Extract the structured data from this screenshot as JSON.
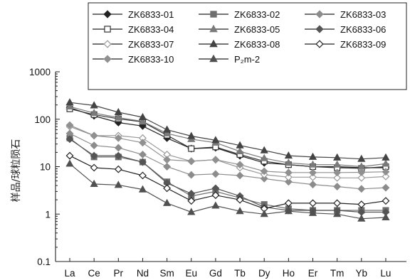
{
  "chart_data": {
    "type": "line",
    "title": "",
    "xlabel": "",
    "ylabel": "样品/球粒陨石",
    "y_scale": "log",
    "ylim": [
      0.1,
      1000
    ],
    "y_ticks": [
      "0.1",
      "1",
      "10",
      "100",
      "1000"
    ],
    "grid": false,
    "legend_position": "top",
    "categories": [
      "La",
      "Ce",
      "Pr",
      "Nd",
      "Sm",
      "Eu",
      "Gd",
      "Tb",
      "Dy",
      "Ho",
      "Er",
      "Tm",
      "Yb",
      "Lu"
    ],
    "series": [
      {
        "name": "ZK6833-01",
        "marker": "diamond-filled",
        "color": "#222222",
        "values": [
          175,
          118,
          85,
          72,
          40,
          24,
          25,
          17,
          12,
          11,
          10,
          10,
          9.5,
          9.5
        ]
      },
      {
        "name": "ZK6833-02",
        "marker": "square-filled",
        "color": "#6e6e6e",
        "values": [
          40,
          16,
          16,
          12.5,
          4.8,
          2.4,
          3.0,
          2.2,
          1.6,
          1.3,
          1.2,
          1.2,
          1.2,
          1.2
        ]
      },
      {
        "name": "ZK6833-03",
        "marker": "diamond-filled",
        "color": "#8c8c8c",
        "values": [
          50,
          28,
          25,
          18,
          10,
          6.7,
          7.0,
          6.5,
          5.6,
          4.8,
          4.2,
          3.8,
          3.4,
          3.6
        ]
      },
      {
        "name": "ZK6833-04",
        "marker": "square-open",
        "color": "#333333",
        "values": [
          165,
          125,
          102,
          88,
          46,
          24,
          26,
          18,
          13,
          11,
          10,
          9.5,
          9.2,
          10
        ]
      },
      {
        "name": "ZK6833-05",
        "marker": "triangle-filled",
        "color": "#7a7a7a",
        "values": [
          185,
          135,
          108,
          90,
          50,
          38,
          32,
          21,
          15,
          12,
          11,
          11,
          10,
          11.5
        ]
      },
      {
        "name": "ZK6833-06",
        "marker": "diamond-filled",
        "color": "#555555",
        "values": [
          38,
          17,
          17,
          12.5,
          4.5,
          2.7,
          3.5,
          2.4,
          1.4,
          1.2,
          1.2,
          1.2,
          1.1,
          1.1
        ]
      },
      {
        "name": "ZK6833-07",
        "marker": "diamond-open",
        "color": "#999999",
        "values": [
          70,
          45,
          45,
          40,
          18,
          13,
          14,
          9.5,
          6.8,
          6.0,
          6.0,
          5.8,
          5.8,
          6.2
        ]
      },
      {
        "name": "ZK6833-08",
        "marker": "triangle-filled",
        "color": "#444444",
        "values": [
          225,
          195,
          140,
          110,
          60,
          44,
          36,
          28,
          22,
          17,
          16,
          15.5,
          14.5,
          15.5
        ]
      },
      {
        "name": "ZK6833-09",
        "marker": "diamond-open",
        "color": "#222222",
        "values": [
          17,
          9.5,
          8.8,
          6.5,
          3.5,
          1.9,
          2.5,
          2.0,
          1.3,
          1.7,
          1.7,
          1.7,
          1.6,
          1.9
        ]
      },
      {
        "name": "ZK6833-10",
        "marker": "diamond-filled",
        "color": "#909090",
        "values": [
          75,
          45,
          40,
          32,
          14,
          13,
          14,
          11,
          8.0,
          7.5,
          7.5,
          7.5,
          7.6,
          7.8
        ]
      },
      {
        "name": "P₂m-2",
        "marker": "triangle-filled",
        "color": "#505050",
        "values": [
          11.5,
          4.3,
          4.1,
          3.3,
          1.7,
          1.1,
          1.5,
          1.15,
          1.0,
          1.15,
          1.05,
          1.0,
          0.8,
          0.85
        ]
      }
    ]
  }
}
